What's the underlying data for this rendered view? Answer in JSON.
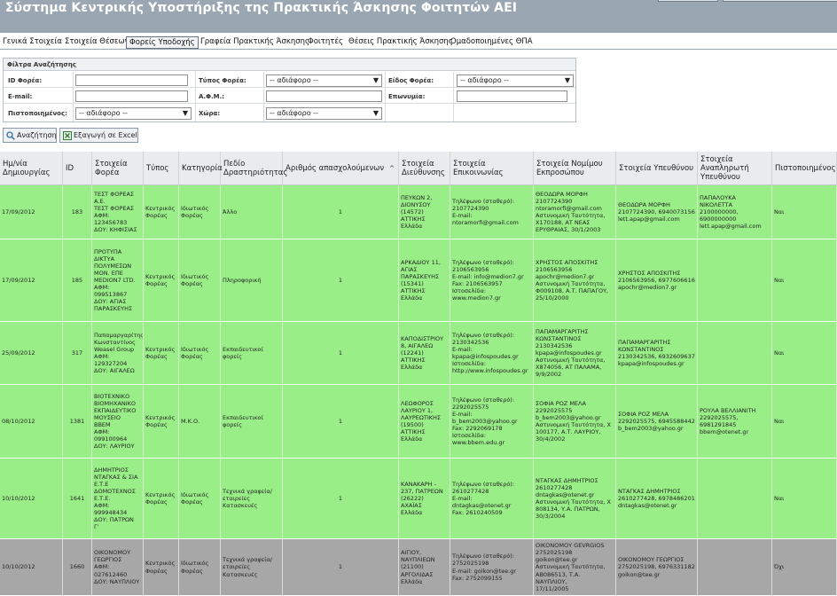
{
  "app_title": "Σύστημα Κεντρικής Υποστήριξης της Πρακτικής Άσκησης Φοιτητών ΑΕΙ",
  "nav": {
    "tabs": [
      {
        "label": "Γενικά Στοιχεία"
      },
      {
        "label": "Στοιχεία Θέσεων"
      },
      {
        "label": "Φορείς Υποδοχής"
      },
      {
        "label": "Γραφεία Πρακτικής Άσκησης"
      },
      {
        "label": "Φοιτητές"
      },
      {
        "label": "Θέσεις Πρακτικής Άσκησης"
      },
      {
        "label": "Ομαδοποιημένες ΘΠΑ"
      }
    ],
    "active_tab": "Φορείς Υποδοχής"
  },
  "filters": {
    "legend": "Φίλτρα Αναζήτησης",
    "id_label": "ID Φορέα:",
    "id_value": "",
    "type_label": "Τύπος Φορέα:",
    "type_value": "-- αδιάφορο --",
    "kind_label": "Είδος Φορέα:",
    "kind_value": "-- αδιάφορο --",
    "email_label": "E-mail:",
    "email_value": "",
    "afm_label": "Α.Φ.Μ.:",
    "afm_value": "",
    "name_label": "Επωνυμία:",
    "name_value": "",
    "certified_label": "Πιστοποιημένος:",
    "certified_value": "-- αδιάφορο --",
    "country_label": "Χώρα:",
    "country_value": "-- αδιάφορο --"
  },
  "actions": {
    "search_label": "Αναζήτηση",
    "export_label": "Εξαγωγή σε Excel"
  },
  "icons": {
    "search": "magnifier-icon",
    "export": "excel-icon"
  },
  "colors": {
    "header_bg": "#9aa6b2",
    "row_certified": "#99ee88",
    "row_uncertified": "#a7a7a7"
  },
  "table": {
    "sort_indicator": "^",
    "columns": [
      "Ημ/νία Δημιουργίας",
      "ID",
      "Στοιχεία Φορέα",
      "Τύπος",
      "Κατηγορία",
      "Πεδίο Δραστηριότητας",
      "Αριθμός απασχολούμενων",
      "Στοιχεία Διεύθυνσης",
      "Στοιχεία Επικοινωνίας",
      "Στοιχεία Νομίμου Εκπροσώπου",
      "Στοιχεία Υπευθύνου",
      "Στοιχεία Αναπληρωτή Υπευθύνου",
      "Πιστοποιημένος"
    ],
    "rows": [
      {
        "date": "17/09/2012",
        "id": "183",
        "provider": "ΤΕΣΤ ΦΟΡΕΑΣ\nΑ.Ε.\nΤΕΣΤ ΦΟΡΕΑΣ\nΑΦΜ:\n123456783\nΔΟΥ: ΚΗΦΙΣΙΑΣ",
        "type": "Κεντρικός\nΦορέας",
        "category": "Ιδιωτικός\nΦορέας",
        "field": "Άλλο",
        "employees": "1",
        "address": "ΠΕΥΚΩΝ 2,\nΔΙΟΝΥΣΟΥ\n(14572)\nΑΤΤΙΚΗΣ\nΕλλάδα",
        "contact": "Τηλέφωνο (σταθερό):\n2107724390\nE-mail:\nntoramorfi@gmail.com",
        "legal_rep": "ΘΕΟΔΩΡΑ ΜΟΡΦΗ\n2107724390\nntoramorfi@gmail.com\nΑστυνομική Ταυτότητα,\nΧ170188, ΑΤ ΝΕΑΣ\nΕΡΥΘΡΑΙΑΣ, 30/1/2003",
        "responsible": "ΘΕΟΔΩΡΑ ΜΟΡΦΗ\n2107724390, 6940073156\nlett.apap@gmail.com",
        "deputy": "ΠΑΠΑΛΟΥΚΑ\nΝΙΚΟΛΕΤΤΑ\n2100000000,\n6900000000\nlett.apap@gmail.com",
        "certified": "Ναι",
        "status": "green"
      },
      {
        "date": "17/09/2012",
        "id": "185",
        "provider": "ΠΡΟΤΥΠΑ\nΔΙΚΤΥΑ\nΠΟΛΥΜΕΣΩΝ\nΜΟΝ. ΕΠΕ\nMEDION7 LTD.\nΑΦΜ:\n099513867\nΔΟΥ: ΑΓΙΑΣ\nΠΑΡΑΣΚΕΥΗΣ",
        "type": "Κεντρικός\nΦορέας",
        "category": "Ιδιωτικός\nΦορέας",
        "field": "Πληροφορική",
        "employees": "1",
        "address": "ΑΡΚΑΔΙΟΥ 11,\nΑΓΙΑΣ\nΠΑΡΑΣΚΕΥΗΣ\n(15341)\nΑΤΤΙΚΗΣ\nΕλλάδα",
        "contact": "Τηλέφωνο (σταθερό):\n2106563956\nE-mail: info@medion7.gr\nFax: 2106563957\nΙστοσελίδα:\nwww.medion7.gr",
        "legal_rep": "ΧΡΗΣΤΟΣ ΑΠΟΣΚΙΤΗΣ\n2106563956\napochr@medion7.gr\nΑστυνομική Ταυτότητα,\nΦ009108, Α.Τ. ΠΑΠΑΓΟΥ,\n25/10/2000",
        "responsible": "ΧΡΗΣΤΟΣ ΑΠΟΣΚΙΤΗΣ\n2106563956, 6977606616\napochr@medion7.gr",
        "deputy": "",
        "certified": "Ναι",
        "status": "green"
      },
      {
        "date": "25/09/2012",
        "id": "317",
        "provider": "Παπαμαργαρίτης\nΚωνσταντίνος\nWeasel Group\nΑΦΜ:\n129327204\nΔΟΥ: ΑΙΓΑΛΕΩ",
        "type": "Κεντρικός\nΦορέας",
        "category": "Ιδιωτικός\nΦορέας",
        "field": "Εκπαιδευτικοί\nφορείς",
        "employees": "1",
        "address": "ΚΑΠΟΔΙΣΤΡΙΟΥ\n8, ΑΙΓΑΛΕΩ\n(12241)\nΑΤΤΙΚΗΣ\nΕλλάδα",
        "contact": "Τηλέφωνο (σταθερό):\n2130342536\nE-mail:\nkpapa@infospoudes.gr\nΙστοσελίδα:\nhttp://www.infospoudes.gr",
        "legal_rep": "ΠΑΠΑΜΑΡΓΑΡΙΤΗΣ\nΚΩΝΣΤΑΝΤΙΝΟΣ\n2130342536\nkpapa@infospoudes.gr\nΑστυνομική Ταυτότητα,\nΧ874056, ΑΤ ΠΑΛΑΜΑ,\n9/9/2002",
        "responsible": "ΠΑΠΑΜΑΡΓΑΡΙΤΗΣ\nΚΩΝΣΤΑΝΤΙΝΟΣ\n2130342536, 6932609637\nkpapa@infospoudes.gr",
        "deputy": "",
        "certified": "Ναι",
        "status": "green"
      },
      {
        "date": "08/10/2012",
        "id": "1381",
        "provider": "ΒΙΟΤΕΧΝΙΚΟ\nΒΙΟΜΗΧΑΝΙΚΟ\nΕΚΠΑΙΔΕΥΤΙΚΟ\nΜΟΥΣΕΙΟ\nBBEM\nΑΦΜ:\n099100964\nΔΟΥ: ΛΑΥΡΙΟΥ",
        "type": "Κεντρικός\nΦορέας",
        "category": "Μ.Κ.Ο.",
        "field": "Εκπαιδευτικοί\nφορείς",
        "employees": "1",
        "address": "ΛΕΩΦΟΡΟΣ\nΛΑΥΡΙΟΥ 1,\nΛΑΥΡΕΩΤΙΚΗΣ\n(19500)\nΑΤΤΙΚΗΣ\nΕλλάδα",
        "contact": "Τηλέφωνο (σταθερό):\n2292025575\nE-mail:\nb_bem2003@yahoo.gr\nFax: 2292069178\nΙστοσελίδα:\nwww.bbem.edu.gr",
        "legal_rep": "ΣΟΦΙΑ ΡΟΖ ΜΕΛΑ\n2292025575\nb_bem2003@yahoo.gr\nΑστυνομική Ταυτότητα, Χ\n100177, Α.Τ. ΛΑΥΡΙΟΥ,\n30/4/2002",
        "responsible": "ΣΟΦΙΑ ΡΟΖ ΜΕΛΑ\n2292025575, 6945588442\nb_bem2003@yahoo.gr",
        "deputy": "ΡΟΥΛΑ ΒΕΛΛΙΑΝΙΤΗ\n2292025575,\n6981291845\nbbem@otenet.gr",
        "certified": "Ναι",
        "status": "green"
      },
      {
        "date": "10/10/2012",
        "id": "1641",
        "provider": "ΔΗΜΗΤΡΙΟΣ\nΝΤΑΓΚΑΣ & ΣΙΑ\nΕ.Τ.Ε\nΔΟΜΟΤΕΧΝΟΣ\nΕ.Τ.Ε.\nΑΦΜ:\n999948434\nΔΟΥ: ΠΑΤΡΩΝ\nΓ'",
        "type": "Κεντρικός\nΦορέας",
        "category": "Ιδιωτικός\nΦορέας",
        "field": "Τεχνικά γραφεία/\nεταιρείες\nΚατασκευές",
        "employees": "1",
        "address": "ΚΑΝΑΚΑΡΗ -\n237, ΠΑΤΡΕΩΝ\n(26222)\nΑΧΑΪΑΣ\nΕλλάδα",
        "contact": "Τηλέφωνο (σταθερό):\n2610277428\nE-mail:\ndntagkas@otenet.gr\nFax: 2610240509",
        "legal_rep": "ΝΤΑΓΚΑΣ ΔΗΜΗΤΡΙΟΣ\n2610277428\ndntagkas@otenet.gr\nΑστυνομική Ταυτότητα, Χ\n808134, Υ.Α. ΠΑΤΡΩΝ,\n30/3/2004",
        "responsible": "ΝΤΑΓΚΑΣ ΔΗΜΗΤΡΙΟΣ\n2610277428, 6978486201\ndntagkas@otenet.gr",
        "deputy": "",
        "certified": "Ναι",
        "status": "green"
      },
      {
        "date": "10/10/2012",
        "id": "1660",
        "provider": "ΟΙΚΟΝΟΜΟΥ\nΓΕΩΡΓΙΟΣ\nΑΦΜ:\n027612460\nΔΟΥ: ΝΑΥΠΛΙΟΥ",
        "type": "Κεντρικός\nΦορέας",
        "category": "Ιδιωτικός\nΦορέας",
        "field": "Τεχνικά γραφεία/\nεταιρείες\nΚατασκευές",
        "employees": "1",
        "address": "ΑΙΓΙΟΥ,\nΝΑΥΠΛΙΕΩΝ\n(21100)\nΑΡΓΟΛΙΔΑΣ\nΕλλάδα",
        "contact": "Τηλέφωνο (σταθερό):\n2752025198\nE-mail: goikon@tee.gr\nFax: 2752099155",
        "legal_rep": "ΟΙΚΟΝΟΜΟΥ GEVRGIOS\n2752025198\ngoikon@tee.gr\nΑστυνομική Ταυτότητα,\nΑΒ086513, Τ.Α. ΝΑΥΠΛΙΟΥ,\n17/11/2005",
        "responsible": "ΟΙΚΟΝΟΜΟΥ ΓΕΩΡΓΙΟΣ\n2752025198, 6976331182\ngoikon@tee.gr",
        "deputy": "",
        "certified": "Όχι",
        "status": "gray"
      }
    ]
  }
}
